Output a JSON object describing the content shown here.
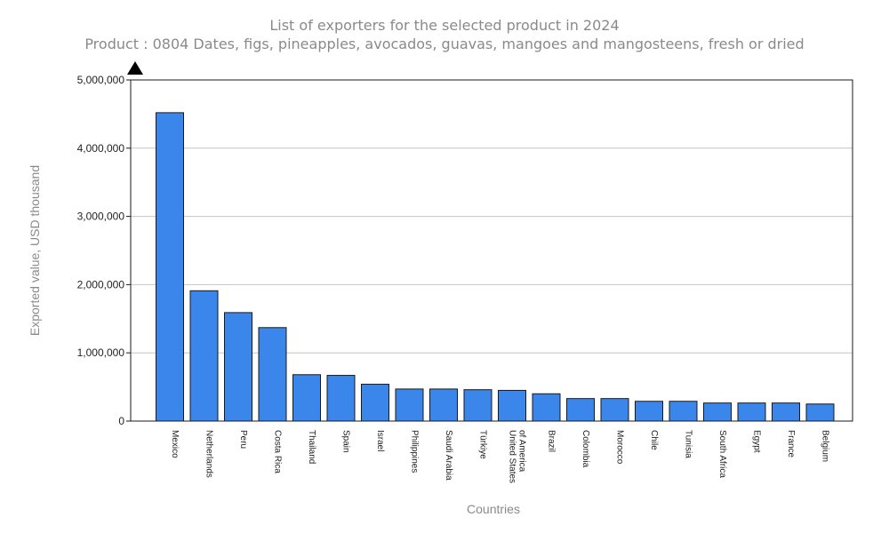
{
  "chart_data": {
    "type": "bar",
    "title": "List of exporters for the selected product in 2024",
    "subtitle": "Product : 0804 Dates, figs, pineapples, avocados, guavas, mangoes and mangosteens, fresh or dried",
    "xlabel": "Countries",
    "ylabel": "Exported value, USD thousand",
    "ylim": [
      0,
      5000000
    ],
    "yticks": [
      0,
      1000000,
      2000000,
      3000000,
      4000000,
      5000000
    ],
    "ytick_labels": [
      "0",
      "1,000,000",
      "2,000,000",
      "3,000,000",
      "4,000,000",
      "5,000,000"
    ],
    "grid": true,
    "legend": "none",
    "bar_color": "#3b86ea",
    "categories": [
      "Mexico",
      "Netherlands",
      "Peru",
      "Costa Rica",
      "Thailand",
      "Spain",
      "Israel",
      "Philippines",
      "Saudi Arabia",
      "Türkiye",
      "United States of America",
      "Brazil",
      "Colombia",
      "Morocco",
      "Chile",
      "Tunisia",
      "South Africa",
      "Egypt",
      "France",
      "Belgium"
    ],
    "category_label_lines": [
      [
        "Mexico"
      ],
      [
        "Netherlands"
      ],
      [
        "Peru"
      ],
      [
        "Costa Rica"
      ],
      [
        "Thailand"
      ],
      [
        "Spain"
      ],
      [
        "Israel"
      ],
      [
        "Philippines"
      ],
      [
        "Saudi Arabia"
      ],
      [
        "Türkiye"
      ],
      [
        "United States",
        "of America"
      ],
      [
        "Brazil"
      ],
      [
        "Colombia"
      ],
      [
        "Morocco"
      ],
      [
        "Chile"
      ],
      [
        "Tunisia"
      ],
      [
        "South Africa"
      ],
      [
        "Egypt"
      ],
      [
        "France"
      ],
      [
        "Belgium"
      ]
    ],
    "values": [
      4520000,
      1910000,
      1590000,
      1370000,
      680000,
      670000,
      540000,
      470000,
      470000,
      460000,
      450000,
      400000,
      330000,
      330000,
      290000,
      290000,
      265000,
      265000,
      265000,
      250000
    ]
  }
}
